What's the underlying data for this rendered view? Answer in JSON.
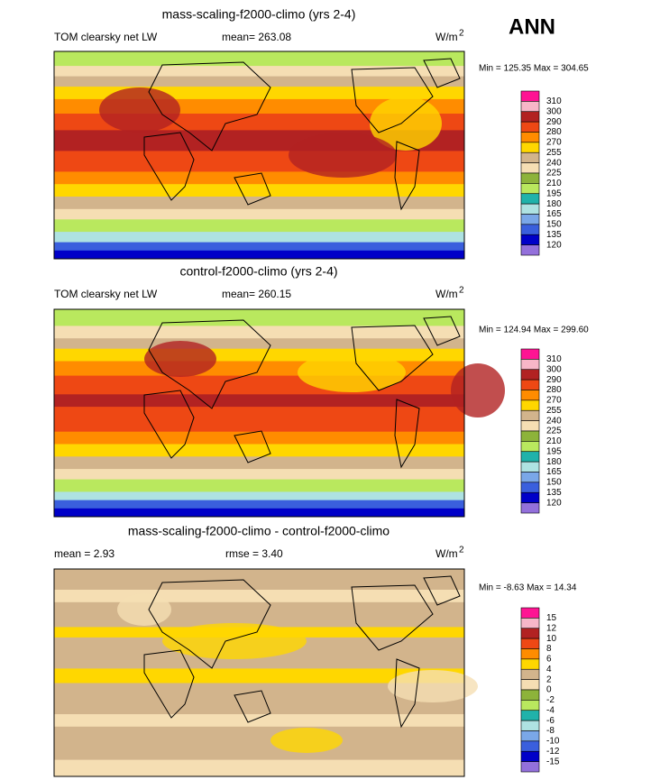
{
  "season": "ANN",
  "panels": [
    {
      "title": "mass-scaling-f2000-climo (yrs 2-4)",
      "left_label": "TOM clearsky net LW",
      "center_label": "mean= 263.08",
      "units": "W/m",
      "units_exponent": "2",
      "minmax": "Min = 125.35 Max = 304.65",
      "colorbar": {
        "labels": [
          "310",
          "300",
          "290",
          "280",
          "270",
          "255",
          "240",
          "225",
          "210",
          "195",
          "180",
          "165",
          "150",
          "135",
          "120"
        ],
        "colors": [
          "#ff1493",
          "#f7b6c8",
          "#b22222",
          "#ee4814",
          "#ff8c00",
          "#ffd700",
          "#d2b48c",
          "#f5deb3",
          "#8db33a",
          "#b9e85e",
          "#20b2aa",
          "#aee2e2",
          "#7aa7e8",
          "#3a5fdd",
          "#0000c8",
          "#9370db"
        ]
      }
    },
    {
      "title": "control-f2000-climo (yrs 2-4)",
      "left_label": "TOM clearsky net LW",
      "center_label": "mean= 260.15",
      "units": "W/m",
      "units_exponent": "2",
      "minmax": "Min = 124.94 Max = 299.60",
      "colorbar": {
        "labels": [
          "310",
          "300",
          "290",
          "280",
          "270",
          "255",
          "240",
          "225",
          "210",
          "195",
          "180",
          "165",
          "150",
          "135",
          "120"
        ],
        "colors": [
          "#ff1493",
          "#f7b6c8",
          "#b22222",
          "#ee4814",
          "#ff8c00",
          "#ffd700",
          "#d2b48c",
          "#f5deb3",
          "#8db33a",
          "#b9e85e",
          "#20b2aa",
          "#aee2e2",
          "#7aa7e8",
          "#3a5fdd",
          "#0000c8",
          "#9370db"
        ]
      }
    },
    {
      "title": "mass-scaling-f2000-climo - control-f2000-climo",
      "left_label": "mean =  2.93",
      "center_label": "rmse =  3.40",
      "units": "W/m",
      "units_exponent": "2",
      "minmax": "Min =  -8.63 Max =  14.34",
      "colorbar": {
        "labels": [
          "15",
          "12",
          "10",
          "8",
          "6",
          "4",
          "2",
          "0",
          "-2",
          "-4",
          "-6",
          "-8",
          "-10",
          "-12",
          "-15"
        ],
        "colors": [
          "#ff1493",
          "#f7b6c8",
          "#b22222",
          "#ee4814",
          "#ff8c00",
          "#ffd700",
          "#d2b48c",
          "#f5deb3",
          "#8db33a",
          "#b9e85e",
          "#20b2aa",
          "#aee2e2",
          "#7aa7e8",
          "#3a5fdd",
          "#0000c8",
          "#9370db"
        ]
      }
    }
  ]
}
